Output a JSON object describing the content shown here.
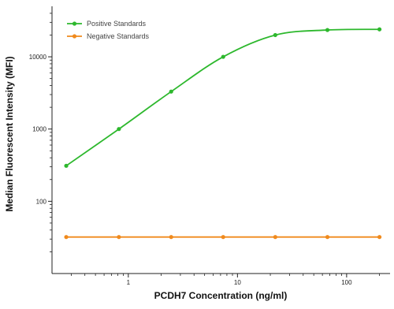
{
  "chart_data": {
    "type": "line",
    "title": "",
    "xlabel": "PCDH7 Concentration (ng/ml)",
    "ylabel": "Median Fluorescent Intensity (MFI)",
    "x_scale": "log",
    "y_scale": "log",
    "xlim": [
      0.2,
      250
    ],
    "ylim": [
      10,
      50000
    ],
    "x_ticks": [
      1,
      10,
      100
    ],
    "x_tick_labels": [
      "1",
      "10",
      "100"
    ],
    "y_ticks": [
      100,
      1000,
      10000
    ],
    "y_tick_labels": [
      "100",
      "1000",
      "10000"
    ],
    "grid": false,
    "legend_position": "top-left",
    "series": [
      {
        "name": "Positive Standards",
        "color": "#2db82d",
        "x": [
          0.27,
          0.82,
          2.47,
          7.4,
          22.2,
          66.7,
          200
        ],
        "y": [
          310,
          1000,
          3300,
          10000,
          20000,
          23500,
          24000
        ]
      },
      {
        "name": "Negative Standards",
        "color": "#f08a1c",
        "x": [
          0.27,
          0.82,
          2.47,
          7.4,
          22.2,
          66.7,
          200
        ],
        "y": [
          32,
          32,
          32,
          32,
          32,
          32,
          32
        ]
      }
    ]
  }
}
